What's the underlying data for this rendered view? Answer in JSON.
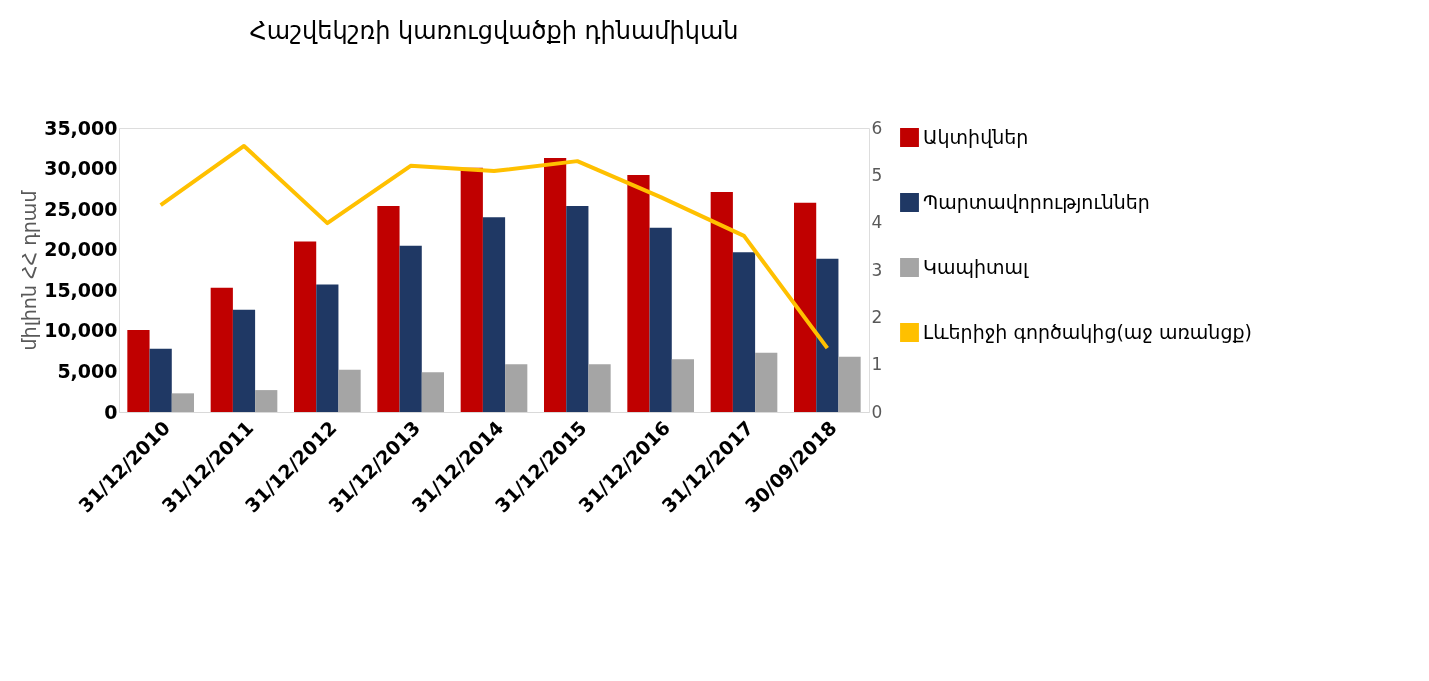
{
  "chart_data": {
    "type": "bar",
    "title": "Հաշվեկշռի կառուցվածքի դինամիկան",
    "ylabel": "միլիոն ՀՀ դրամ",
    "categories": [
      "31/12/2010",
      "31/12/2011",
      "31/12/2012",
      "31/12/2013",
      "31/12/2014",
      "31/12/2015",
      "31/12/2016",
      "31/12/2017",
      "30/09/2018"
    ],
    "series": [
      {
        "name": "Ակտիվներ",
        "color": "#c00000",
        "values": [
          10100,
          15300,
          21000,
          25400,
          30100,
          31300,
          29200,
          27100,
          25800
        ]
      },
      {
        "name": "Պարտավորություններ",
        "color": "#1f3864",
        "values": [
          7800,
          12600,
          15700,
          20500,
          24000,
          25400,
          22700,
          19700,
          18900
        ]
      },
      {
        "name": "Կապիտալ",
        "color": "#a5a5a5",
        "values": [
          2300,
          2700,
          5200,
          4900,
          5900,
          5900,
          6500,
          7300,
          6800
        ]
      },
      {
        "name": "Լևերիջի գործակից(աջ առանցք)",
        "color": "#ffc000",
        "type": "line",
        "axis": "y2",
        "values": [
          4.37,
          5.62,
          3.99,
          5.2,
          5.09,
          5.3,
          4.54,
          3.72,
          1.35
        ]
      }
    ],
    "ylim": [
      0,
      35000
    ],
    "yticks": [
      0,
      {
        "value": 5000,
        "label": "5,000"
      },
      {
        "value": 10000,
        "label": "10,000"
      },
      {
        "value": 15000,
        "label": "15,000"
      },
      {
        "value": 20000,
        "label": "20,000"
      },
      {
        "value": 25000,
        "label": "25,000"
      },
      {
        "value": 30000,
        "label": "30,000"
      },
      {
        "value": 35000,
        "label": "35,000"
      }
    ],
    "y2lim": [
      0,
      6
    ],
    "y2ticks": [
      0,
      1,
      2,
      3,
      4,
      5,
      6
    ],
    "grid": false,
    "legend": "right",
    "marker": "none",
    "line_style": "solid"
  }
}
